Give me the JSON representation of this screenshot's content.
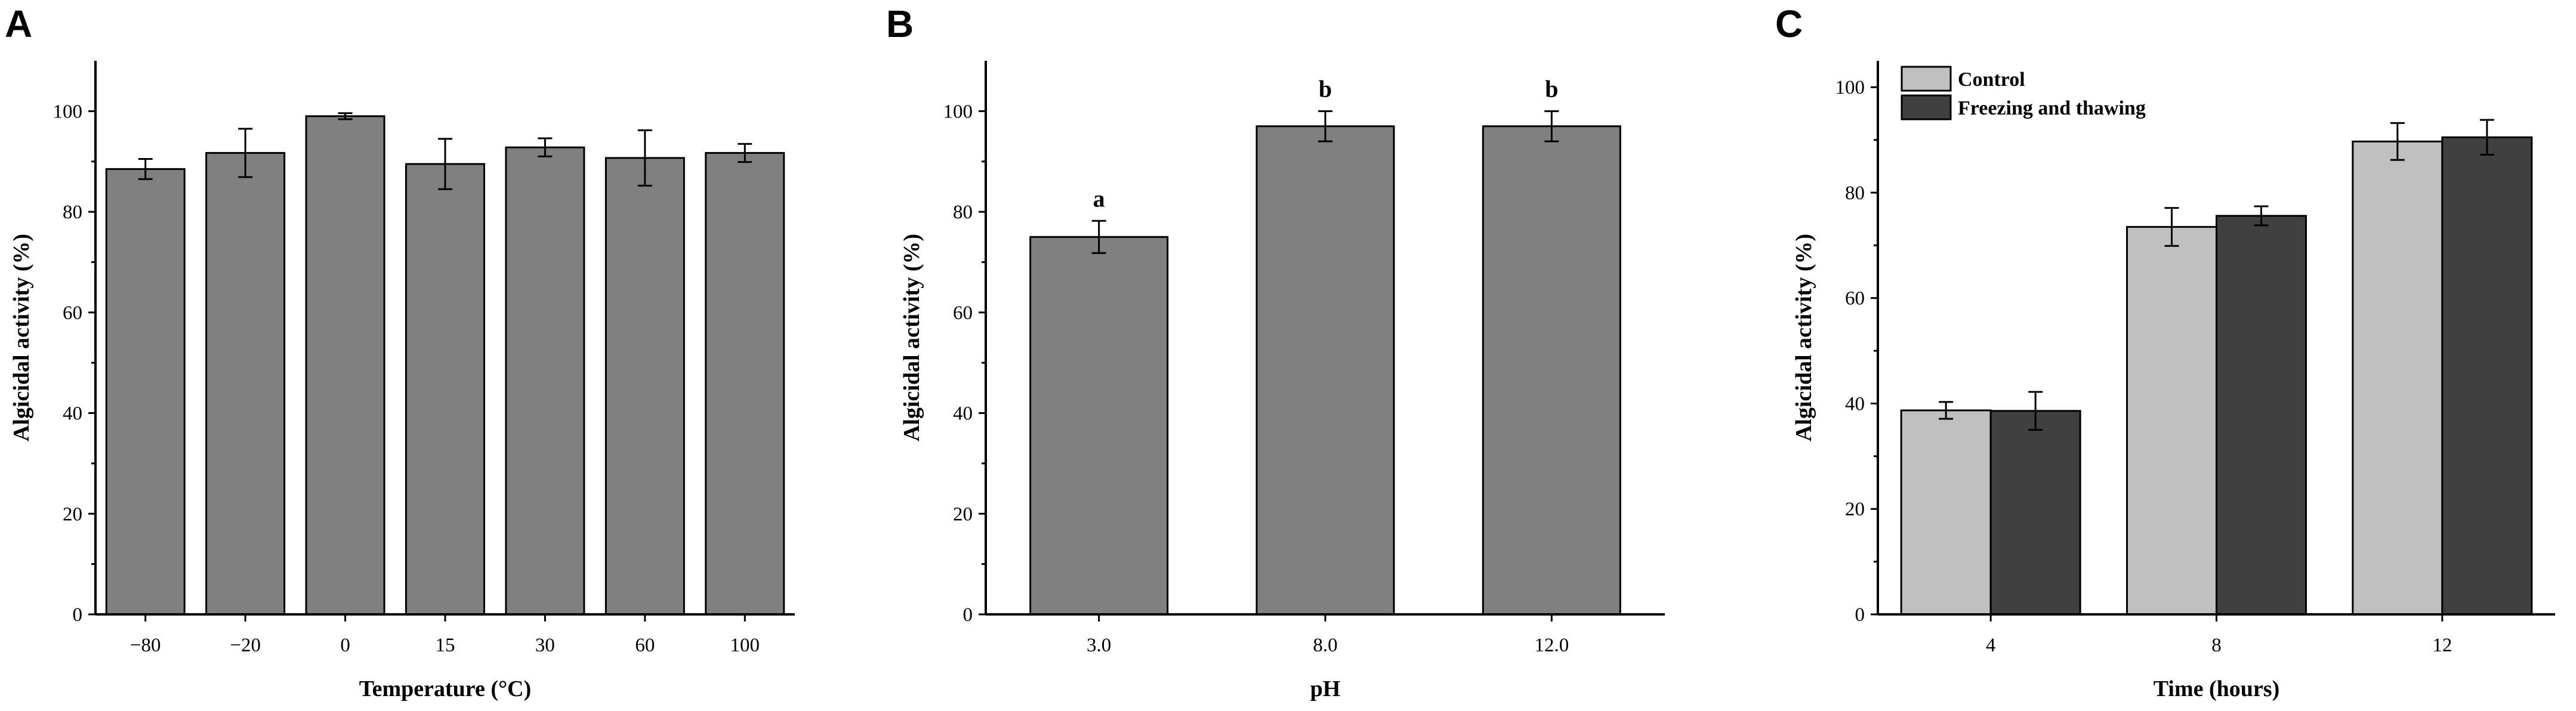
{
  "chart_data": [
    {
      "panel": "A",
      "type": "bar",
      "xlabel": "Temperature (°C)",
      "ylabel": "Algicidal activity (%)",
      "ylim": [
        0,
        110
      ],
      "yticks": [
        0,
        20,
        40,
        60,
        80,
        100
      ],
      "categories": [
        "−80",
        "−20",
        "0",
        "15",
        "30",
        "60",
        "100"
      ],
      "series": [
        {
          "values": [
            88.5,
            91.7,
            99.0,
            89.5,
            92.8,
            90.7,
            91.7
          ],
          "errors": [
            2.0,
            4.8,
            0.6,
            5.0,
            1.8,
            5.5,
            1.8
          ],
          "color": "#808080"
        }
      ],
      "grid": false
    },
    {
      "panel": "B",
      "type": "bar",
      "xlabel": "pH",
      "ylabel": "Algicidal activity (%)",
      "ylim": [
        0,
        110
      ],
      "yticks": [
        0,
        20,
        40,
        60,
        80,
        100
      ],
      "categories": [
        "3.0",
        "8.0",
        "12.0"
      ],
      "series": [
        {
          "values": [
            75.0,
            97.0,
            97.0
          ],
          "errors": [
            3.2,
            3.0,
            3.0
          ],
          "color": "#808080"
        }
      ],
      "annotations": [
        "a",
        "b",
        "b"
      ],
      "grid": false
    },
    {
      "panel": "C",
      "type": "bar",
      "xlabel": "Time (hours)",
      "ylabel": "Algicidal activity (%)",
      "ylim": [
        0,
        105
      ],
      "yticks": [
        0,
        20,
        40,
        60,
        80,
        100
      ],
      "categories": [
        "4",
        "8",
        "12"
      ],
      "series": [
        {
          "name": "Control",
          "values": [
            38.7,
            73.5,
            89.7
          ],
          "errors": [
            1.6,
            3.6,
            3.5
          ],
          "color": "#c0c0c0"
        },
        {
          "name": "Freezing and thawing",
          "values": [
            38.6,
            75.6,
            90.5
          ],
          "errors": [
            3.6,
            1.8,
            3.3
          ],
          "color": "#404040"
        }
      ],
      "legend": "top-left",
      "grid": false
    }
  ]
}
